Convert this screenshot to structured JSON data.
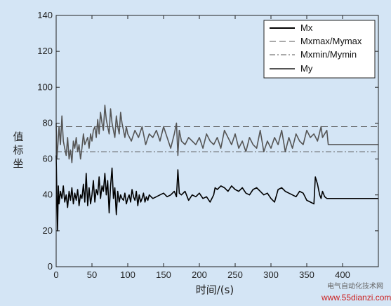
{
  "chart_data": {
    "type": "line",
    "xlim": [
      0,
      450
    ],
    "ylim": [
      0,
      140
    ],
    "xticks": [
      0,
      50,
      100,
      150,
      200,
      250,
      300,
      350,
      400
    ],
    "yticks": [
      0,
      20,
      40,
      60,
      80,
      100,
      120,
      140
    ],
    "xlabel": "时间/(s)",
    "ylabel": "值标坐",
    "grid": false,
    "legend_position": "top-right",
    "series": [
      {
        "name": "Mx",
        "style": "solid",
        "color": "#000000",
        "x": [
          0,
          1,
          2,
          3,
          4,
          6,
          8,
          10,
          12,
          14,
          16,
          18,
          20,
          22,
          24,
          26,
          28,
          30,
          32,
          34,
          36,
          38,
          40,
          42,
          44,
          46,
          48,
          50,
          52,
          54,
          56,
          58,
          60,
          62,
          64,
          66,
          68,
          70,
          72,
          74,
          76,
          78,
          80,
          82,
          84,
          86,
          88,
          90,
          92,
          94,
          96,
          98,
          100,
          102,
          104,
          106,
          108,
          110,
          112,
          114,
          116,
          118,
          120,
          122,
          124,
          126,
          128,
          130,
          135,
          140,
          145,
          150,
          155,
          160,
          165,
          168,
          170,
          172,
          175,
          180,
          185,
          190,
          195,
          200,
          205,
          210,
          215,
          220,
          222,
          225,
          230,
          235,
          240,
          245,
          250,
          255,
          260,
          265,
          270,
          275,
          280,
          285,
          290,
          295,
          300,
          305,
          310,
          315,
          320,
          325,
          330,
          335,
          340,
          345,
          350,
          355,
          360,
          362,
          365,
          368,
          370,
          372,
          375,
          378,
          380,
          450
        ],
        "y": [
          62,
          40,
          20,
          45,
          35,
          42,
          38,
          45,
          36,
          40,
          33,
          42,
          37,
          44,
          35,
          41,
          37,
          43,
          34,
          40,
          38,
          46,
          36,
          52,
          34,
          44,
          35,
          40,
          48,
          36,
          43,
          40,
          50,
          38,
          45,
          42,
          52,
          40,
          48,
          30,
          45,
          55,
          38,
          44,
          29,
          42,
          36,
          40,
          38,
          37,
          41,
          35,
          38,
          40,
          36,
          43,
          39,
          37,
          42,
          34,
          40,
          36,
          38,
          41,
          36,
          39,
          37,
          40,
          38,
          39,
          40,
          41,
          39,
          40,
          42,
          39,
          54,
          41,
          40,
          42,
          37,
          40,
          39,
          41,
          38,
          39,
          36,
          40,
          44,
          43,
          45,
          44,
          42,
          45,
          43,
          42,
          44,
          41,
          40,
          43,
          44,
          42,
          40,
          41,
          38,
          36,
          43,
          44,
          42,
          41,
          40,
          39,
          42,
          41,
          37,
          36,
          35,
          50,
          46,
          40,
          38,
          42,
          39,
          38,
          38,
          38
        ]
      },
      {
        "name": "Mxmax/Mymax",
        "style": "dashed",
        "color": "#555555",
        "x": [
          0,
          450
        ],
        "y": [
          78,
          78
        ]
      },
      {
        "name": "Mxmin/Mymin",
        "style": "dashdot",
        "color": "#555555",
        "x": [
          0,
          450
        ],
        "y": [
          64,
          64
        ]
      },
      {
        "name": "My",
        "style": "solid",
        "color": "#555555",
        "x": [
          0,
          1,
          2,
          3,
          4,
          6,
          8,
          10,
          12,
          14,
          16,
          18,
          20,
          22,
          24,
          26,
          28,
          30,
          32,
          34,
          36,
          38,
          40,
          42,
          44,
          46,
          48,
          50,
          52,
          54,
          56,
          58,
          60,
          62,
          64,
          66,
          68,
          70,
          72,
          74,
          76,
          78,
          80,
          82,
          84,
          86,
          88,
          90,
          92,
          94,
          96,
          98,
          100,
          105,
          110,
          115,
          120,
          125,
          130,
          135,
          140,
          145,
          150,
          155,
          160,
          165,
          168,
          170,
          172,
          175,
          180,
          185,
          190,
          195,
          200,
          205,
          210,
          215,
          220,
          225,
          230,
          235,
          240,
          245,
          250,
          255,
          260,
          265,
          270,
          275,
          280,
          285,
          290,
          295,
          300,
          305,
          310,
          315,
          320,
          325,
          330,
          335,
          340,
          345,
          350,
          355,
          360,
          365,
          370,
          372,
          375,
          378,
          380,
          450
        ],
        "y": [
          80,
          60,
          65,
          72,
          78,
          68,
          84,
          70,
          66,
          62,
          72,
          60,
          65,
          58,
          70,
          66,
          72,
          64,
          68,
          60,
          66,
          74,
          68,
          70,
          72,
          66,
          74,
          70,
          76,
          78,
          72,
          82,
          74,
          86,
          80,
          76,
          90,
          82,
          78,
          74,
          88,
          80,
          76,
          72,
          84,
          78,
          74,
          86,
          80,
          76,
          72,
          78,
          74,
          70,
          76,
          72,
          78,
          68,
          74,
          72,
          76,
          70,
          78,
          72,
          66,
          74,
          80,
          62,
          76,
          70,
          68,
          72,
          70,
          68,
          72,
          66,
          74,
          70,
          68,
          72,
          66,
          76,
          72,
          68,
          74,
          66,
          70,
          64,
          72,
          68,
          66,
          76,
          64,
          70,
          66,
          72,
          68,
          76,
          64,
          72,
          66,
          74,
          70,
          68,
          76,
          72,
          74,
          70,
          78,
          72,
          74,
          76,
          68,
          68
        ]
      }
    ]
  },
  "watermark": {
    "line1": "电气自动化技术网",
    "line2": "www.55dianzi.com"
  }
}
